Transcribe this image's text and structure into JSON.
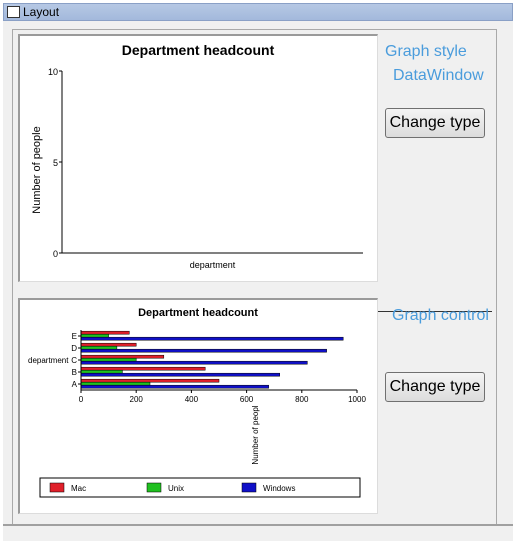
{
  "window": {
    "title": "Layout",
    "icon": "layout-window-icon"
  },
  "graph_style": {
    "links": [
      "Graph style",
      "DataWindow"
    ],
    "button_label": "Change type"
  },
  "graph_control": {
    "link": "Graph control",
    "button_label": "Change type"
  },
  "chart_data": [
    {
      "type": "line",
      "title": "Department headcount",
      "xlabel": "department",
      "ylabel": "Number of people",
      "ylim": [
        0,
        10
      ],
      "yticks": [
        "0",
        "5",
        "10"
      ],
      "series": []
    },
    {
      "type": "bar",
      "orientation": "horizontal",
      "title": "Department headcount",
      "xlabel": "Number of peopl",
      "ylabel": "department",
      "xlim": [
        0,
        1000
      ],
      "xticks": [
        "0",
        "200",
        "400",
        "600",
        "800",
        "1000"
      ],
      "categories": [
        "A",
        "B",
        "C",
        "D",
        "E"
      ],
      "series": [
        {
          "name": "Mac",
          "color": "#e0202a",
          "values": [
            500,
            450,
            300,
            200,
            175
          ]
        },
        {
          "name": "Unix",
          "color": "#20c020",
          "values": [
            250,
            150,
            200,
            130,
            100
          ]
        },
        {
          "name": "Windows",
          "color": "#1010c8",
          "values": [
            680,
            720,
            820,
            890,
            950
          ]
        }
      ],
      "legend": "bottom"
    }
  ]
}
